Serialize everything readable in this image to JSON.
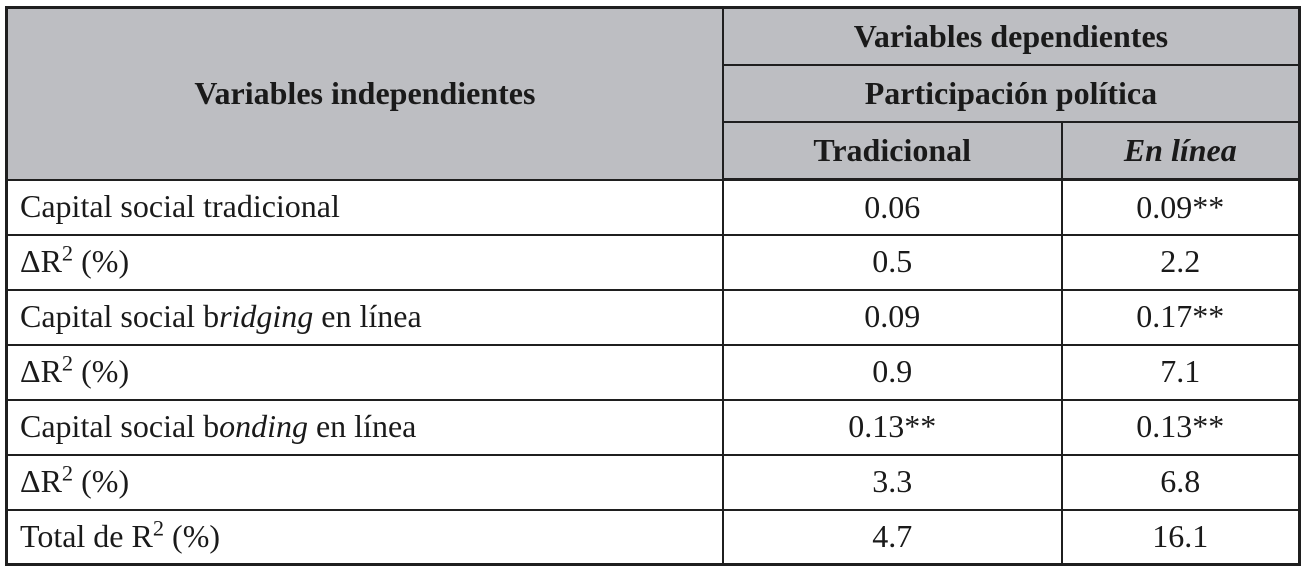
{
  "table": {
    "header": {
      "col_independent": "Variables independientes",
      "col_dependent": "Variables dependientes",
      "subheader": "Participación política",
      "col_traditional": "Tradicional",
      "col_online": "En línea"
    },
    "rows": [
      {
        "label": [
          {
            "t": "Capital social tradicional"
          }
        ],
        "traditional": "0.06",
        "online": "0.09**"
      },
      {
        "label": [
          {
            "t": "ΔR"
          },
          {
            "t": "2",
            "sup": true
          },
          {
            "t": " (%)"
          }
        ],
        "traditional": "0.5",
        "online": "2.2"
      },
      {
        "label": [
          {
            "t": "Capital social b"
          },
          {
            "t": "ridging",
            "i": true
          },
          {
            "t": " en línea"
          }
        ],
        "traditional": "0.09",
        "online": "0.17**"
      },
      {
        "label": [
          {
            "t": "ΔR"
          },
          {
            "t": "2",
            "sup": true
          },
          {
            "t": " (%)"
          }
        ],
        "traditional": "0.9",
        "online": "7.1"
      },
      {
        "label": [
          {
            "t": "Capital social b"
          },
          {
            "t": "onding",
            "i": true
          },
          {
            "t": " en línea"
          }
        ],
        "traditional": "0.13**",
        "online": "0.13**"
      },
      {
        "label": [
          {
            "t": "ΔR"
          },
          {
            "t": "2",
            "sup": true
          },
          {
            "t": " (%)"
          }
        ],
        "traditional": "3.3",
        "online": "6.8"
      },
      {
        "label": [
          {
            "t": "Total de R"
          },
          {
            "t": "2",
            "sup": true
          },
          {
            "t": " (%)"
          }
        ],
        "traditional": "4.7",
        "online": "16.1"
      }
    ],
    "colors": {
      "header_bg": "#bdbec2",
      "border": "#1f1f1f",
      "text": "#1a1a1a"
    }
  }
}
